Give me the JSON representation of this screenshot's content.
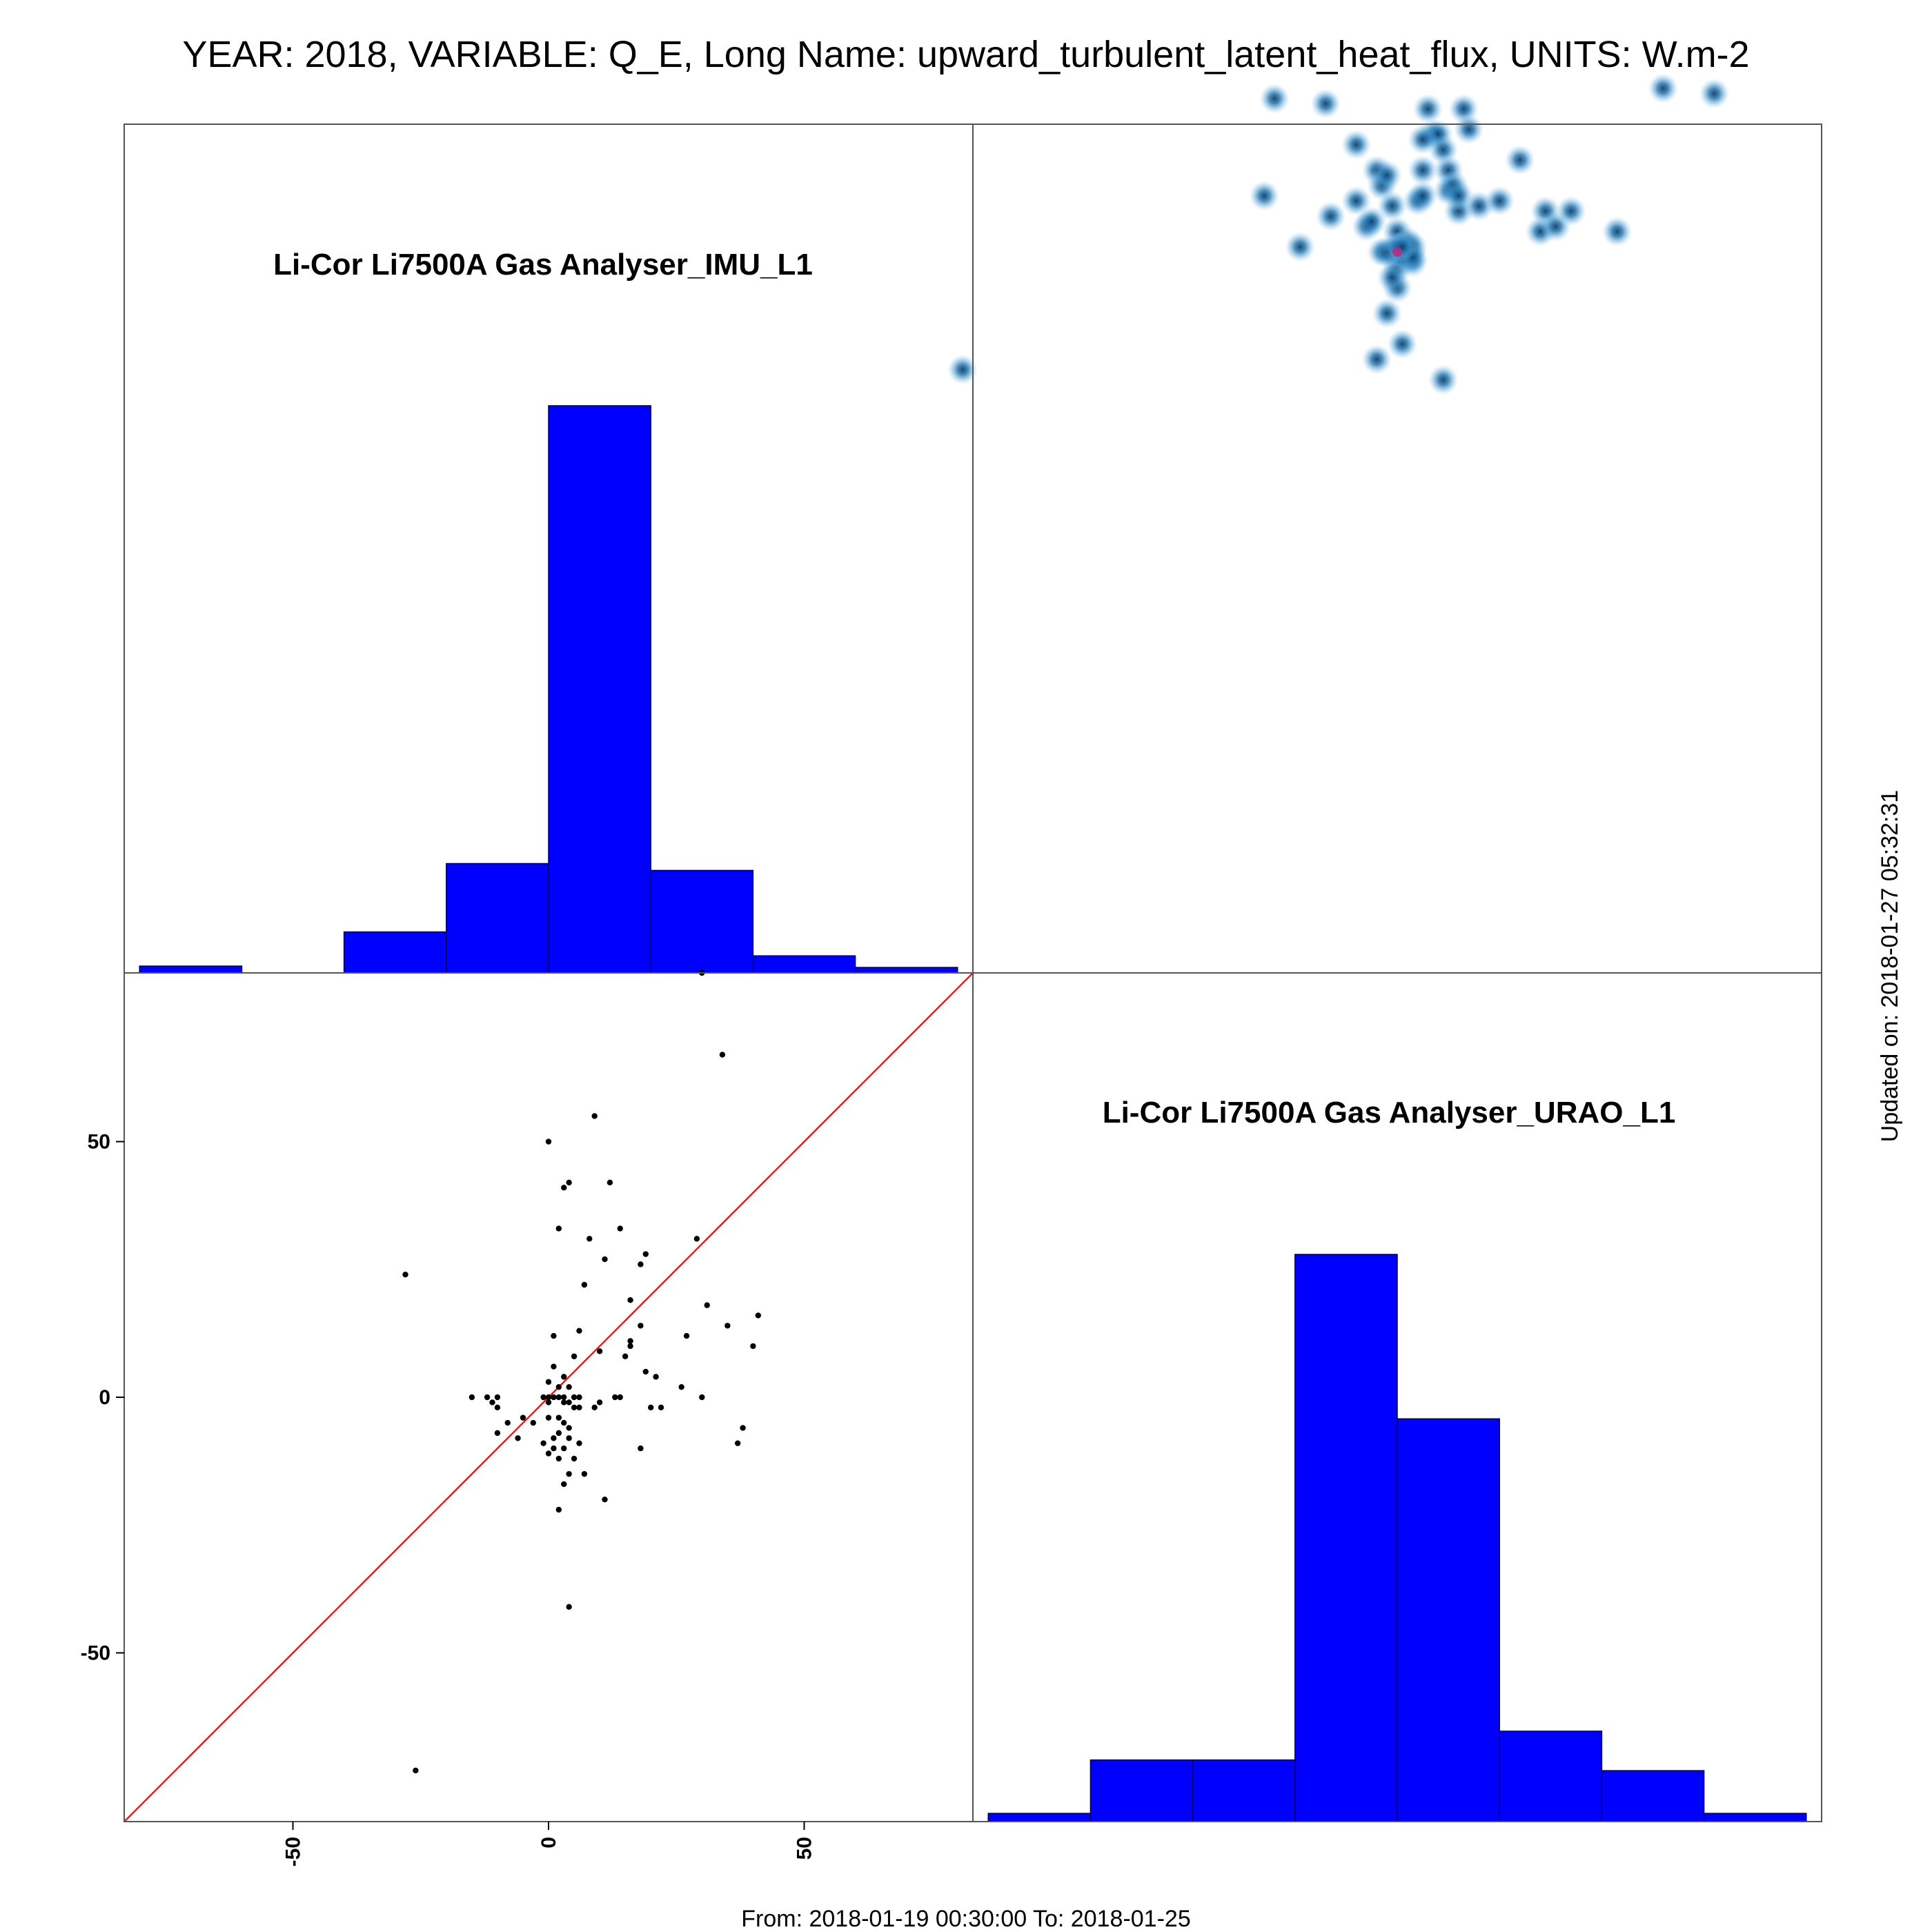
{
  "header": {
    "title": "YEAR: 2018, VARIABLE: Q_E, Long Name: upward_turbulent_latent_heat_flux, UNITS: W.m-2"
  },
  "footer": {
    "range_text": "From: 2018-01-19 00:30:00 To: 2018-01-25",
    "updated_text": "Updated on: 2018-01-27 05:32:31"
  },
  "chart_data": {
    "type": "scatter-matrix",
    "axis_range": [
      -83,
      83
    ],
    "ticks": [
      -50,
      0,
      50
    ],
    "tick_labels": [
      "-50",
      "0",
      "50"
    ],
    "colors": {
      "hist_fill": "#0000ff",
      "hist_stroke": "#000055",
      "identity_line": "#ff0000",
      "points": "#000000",
      "density": "#1f77b4",
      "density_peak": "#cc2277",
      "frame": "#555555"
    },
    "hist_imu": {
      "name": "Li-Cor Li7500A Gas Analyser_IMU_L1",
      "bin_edges": [
        -80,
        -60,
        -40,
        -20,
        0,
        20,
        40,
        60,
        80
      ],
      "counts": [
        1,
        0,
        6,
        16,
        83,
        15,
        2.5,
        0.8
      ]
    },
    "hist_urao": {
      "name": "Li-Cor Li7500A Gas Analyser_URAO_L1",
      "bin_edges": [
        -80,
        -60,
        -40,
        -20,
        0,
        20,
        40,
        60,
        80
      ],
      "counts": [
        1,
        7.5,
        7.5,
        69,
        49,
        11,
        6.2,
        1
      ]
    },
    "points": [
      [
        30,
        83
      ],
      [
        34,
        67
      ],
      [
        9,
        55
      ],
      [
        0,
        50
      ],
      [
        4,
        42
      ],
      [
        3,
        41
      ],
      [
        12,
        42
      ],
      [
        2,
        33
      ],
      [
        14,
        33
      ],
      [
        29,
        31
      ],
      [
        8,
        31
      ],
      [
        11,
        27
      ],
      [
        19,
        28
      ],
      [
        -28,
        24
      ],
      [
        18,
        26
      ],
      [
        7,
        22
      ],
      [
        16,
        19
      ],
      [
        31,
        18
      ],
      [
        41,
        16
      ],
      [
        35,
        14
      ],
      [
        18,
        14
      ],
      [
        1,
        12
      ],
      [
        6,
        13
      ],
      [
        16,
        11
      ],
      [
        16,
        10
      ],
      [
        40,
        10
      ],
      [
        27,
        12
      ],
      [
        10,
        9
      ],
      [
        15,
        8
      ],
      [
        5,
        8
      ],
      [
        19,
        5
      ],
      [
        21,
        4
      ],
      [
        1,
        6
      ],
      [
        3,
        4
      ],
      [
        0,
        3
      ],
      [
        2,
        2
      ],
      [
        4,
        2
      ],
      [
        -10,
        0
      ],
      [
        -12,
        0
      ],
      [
        -15,
        0
      ],
      [
        0,
        0
      ],
      [
        -1,
        0
      ],
      [
        1,
        0
      ],
      [
        2,
        0
      ],
      [
        3,
        0
      ],
      [
        5,
        0
      ],
      [
        6,
        0
      ],
      [
        13,
        0
      ],
      [
        14,
        0
      ],
      [
        26,
        2
      ],
      [
        30,
        0
      ],
      [
        -11,
        -1
      ],
      [
        -10,
        -2
      ],
      [
        0,
        -1
      ],
      [
        3,
        -1
      ],
      [
        4,
        -1
      ],
      [
        5,
        -2
      ],
      [
        6,
        -2
      ],
      [
        9,
        -2
      ],
      [
        10,
        -1
      ],
      [
        20,
        -2
      ],
      [
        22,
        -2
      ],
      [
        -8,
        -5
      ],
      [
        -5,
        -4
      ],
      [
        -3,
        -5
      ],
      [
        0,
        -4
      ],
      [
        2,
        -4
      ],
      [
        3,
        -5
      ],
      [
        4,
        -6
      ],
      [
        -10,
        -7
      ],
      [
        -6,
        -8
      ],
      [
        1,
        -8
      ],
      [
        2,
        -7
      ],
      [
        4,
        -8
      ],
      [
        6,
        -9
      ],
      [
        1,
        -10
      ],
      [
        3,
        -10
      ],
      [
        0,
        -11
      ],
      [
        2,
        -12
      ],
      [
        5,
        -12
      ],
      [
        -1,
        -9
      ],
      [
        18,
        -10
      ],
      [
        37,
        -9
      ],
      [
        38,
        -6
      ],
      [
        4,
        -15
      ],
      [
        7,
        -15
      ],
      [
        11,
        -20
      ],
      [
        3,
        -17
      ],
      [
        2,
        -22
      ],
      [
        4,
        -41
      ],
      [
        -26,
        -73
      ]
    ],
    "density_blobs": [
      [
        -24,
        88
      ],
      [
        -19,
        59
      ],
      [
        -14,
        87
      ],
      [
        -8,
        79
      ],
      [
        -6,
        63
      ],
      [
        -5,
        64
      ],
      [
        -4,
        74
      ],
      [
        -3,
        71
      ],
      [
        -2,
        73
      ],
      [
        -1,
        67
      ],
      [
        0,
        62
      ],
      [
        0,
        55
      ],
      [
        0,
        51
      ],
      [
        -1,
        53
      ],
      [
        1,
        58
      ],
      [
        2,
        60
      ],
      [
        3,
        56
      ],
      [
        4,
        68
      ],
      [
        5,
        69
      ],
      [
        5,
        74
      ],
      [
        6,
        86
      ],
      [
        7,
        81
      ],
      [
        8,
        81
      ],
      [
        9,
        78
      ],
      [
        10,
        74
      ],
      [
        10,
        70
      ],
      [
        11,
        71
      ],
      [
        12,
        66
      ],
      [
        13,
        86
      ],
      [
        14,
        82
      ],
      [
        -3,
        58
      ],
      [
        1,
        58
      ],
      [
        2,
        57
      ],
      [
        -1,
        58
      ],
      [
        0,
        58
      ],
      [
        1,
        57
      ],
      [
        3,
        59
      ],
      [
        3,
        57
      ],
      [
        -2,
        58
      ],
      [
        0,
        59
      ],
      [
        1,
        59
      ],
      [
        5,
        80
      ],
      [
        12,
        69
      ],
      [
        16,
        67
      ],
      [
        20,
        68
      ],
      [
        24,
        76
      ],
      [
        29,
        66
      ],
      [
        28,
        62
      ],
      [
        31,
        63
      ],
      [
        34,
        66
      ],
      [
        43,
        62
      ],
      [
        52,
        90
      ],
      [
        62,
        89
      ],
      [
        9,
        33
      ],
      [
        -2,
        46
      ],
      [
        -4,
        37
      ],
      [
        1,
        40
      ],
      [
        -85,
        35
      ],
      [
        -26,
        69
      ],
      [
        -13,
        65
      ],
      [
        -8,
        68
      ]
    ]
  }
}
